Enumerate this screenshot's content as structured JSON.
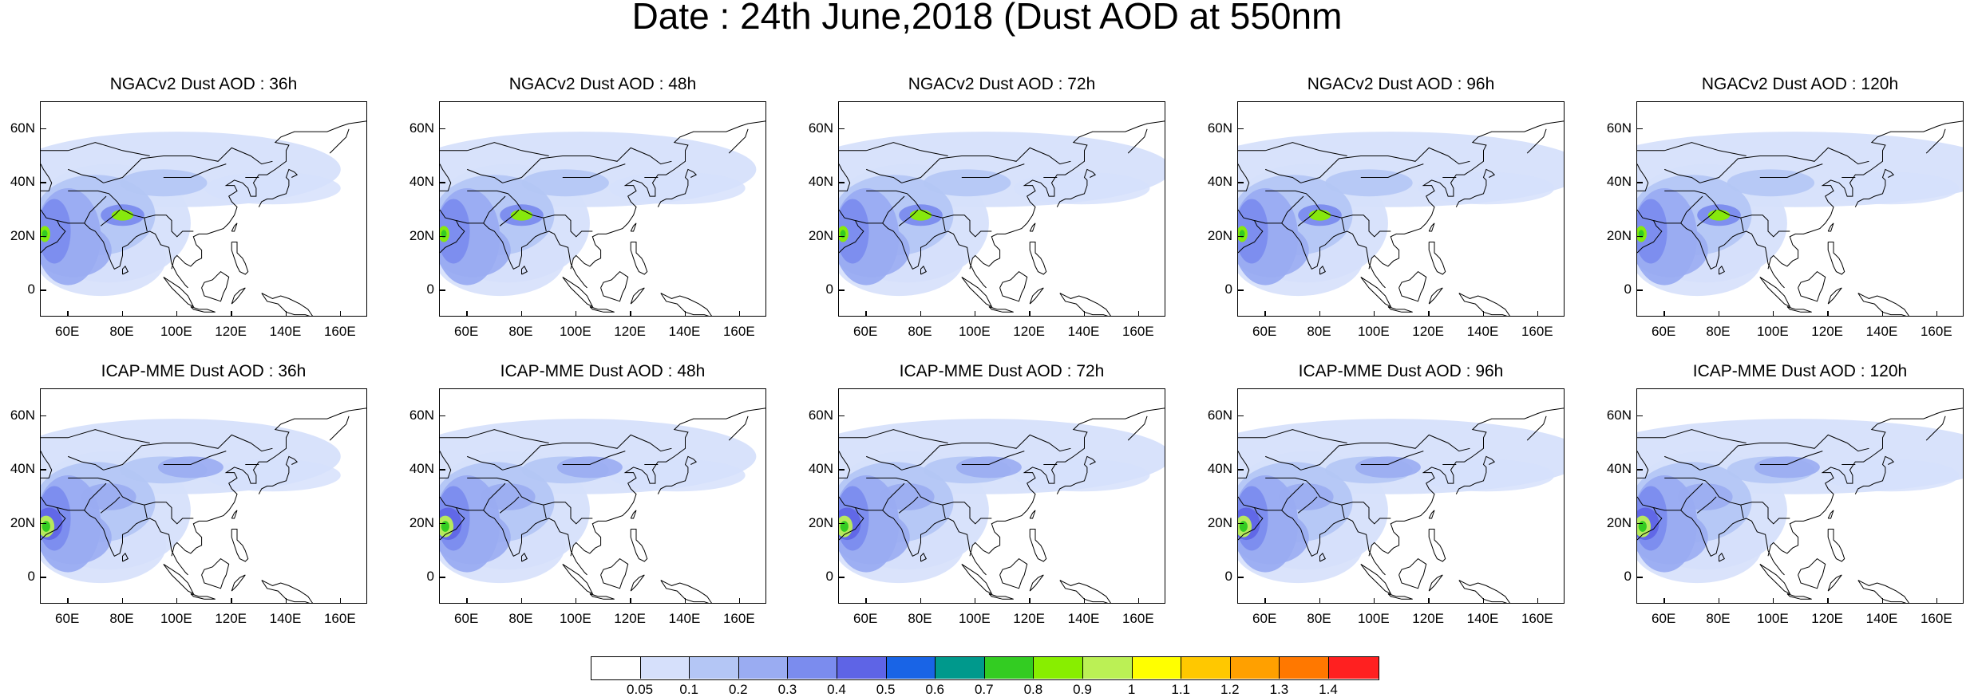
{
  "title": "Date : 24th June,2018 (Dust AOD at 550nm",
  "axes": {
    "lat_labels": [
      "60N",
      "40N",
      "20N",
      "0"
    ],
    "lat_values": [
      60,
      40,
      20,
      0
    ],
    "lon_labels": [
      "60E",
      "80E",
      "100E",
      "120E",
      "140E",
      "160E"
    ],
    "lon_values": [
      60,
      80,
      100,
      120,
      140,
      160
    ],
    "lon_range": [
      50,
      170
    ],
    "lat_range": [
      -10,
      70
    ]
  },
  "panels": [
    {
      "title": "NGACv2 Dust AOD : 36h",
      "lead_hours": 36,
      "model": "NGACv2"
    },
    {
      "title": "NGACv2 Dust AOD : 48h",
      "lead_hours": 48,
      "model": "NGACv2"
    },
    {
      "title": "NGACv2 Dust AOD : 72h",
      "lead_hours": 72,
      "model": "NGACv2"
    },
    {
      "title": "NGACv2 Dust AOD : 96h",
      "lead_hours": 96,
      "model": "NGACv2"
    },
    {
      "title": "NGACv2 Dust AOD : 120h",
      "lead_hours": 120,
      "model": "NGACv2"
    },
    {
      "title": "ICAP-MME Dust AOD : 36h",
      "lead_hours": 36,
      "model": "ICAP-MME"
    },
    {
      "title": "ICAP-MME Dust AOD : 48h",
      "lead_hours": 48,
      "model": "ICAP-MME"
    },
    {
      "title": "ICAP-MME Dust AOD : 72h",
      "lead_hours": 72,
      "model": "ICAP-MME"
    },
    {
      "title": "ICAP-MME Dust AOD : 96h",
      "lead_hours": 96,
      "model": "ICAP-MME"
    },
    {
      "title": "ICAP-MME Dust AOD : 120h",
      "lead_hours": 120,
      "model": "ICAP-MME"
    }
  ],
  "colorbar": {
    "colors": [
      "#ffffff",
      "#d6e0fb",
      "#b4c6f5",
      "#9aacf2",
      "#7b8cee",
      "#5e64e6",
      "#1964e6",
      "#00998c",
      "#33cc22",
      "#88ee00",
      "#bbf055",
      "#ffff00",
      "#ffc800",
      "#ffa000",
      "#ff7800",
      "#ff2020"
    ],
    "labels": [
      "0.05",
      "0.1",
      "0.2",
      "0.3",
      "0.4",
      "0.5",
      "0.6",
      "0.7",
      "0.8",
      "0.9",
      "1",
      "1.1",
      "1.2",
      "1.3",
      "1.4"
    ]
  }
}
